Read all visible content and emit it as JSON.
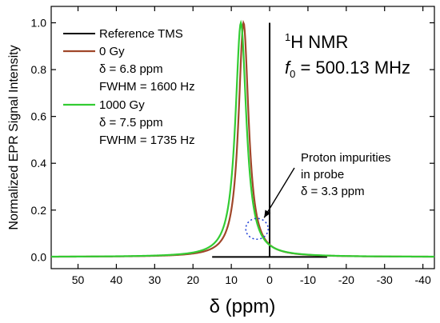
{
  "chart_data": {
    "type": "line",
    "xlabel": "δ (ppm)",
    "ylabel": "Normalized EPR Signal Intensity",
    "xlim": [
      57,
      -43
    ],
    "ylim": [
      -0.05,
      1.07
    ],
    "x_reversed": true,
    "x_ticks": [
      50,
      40,
      30,
      20,
      10,
      0,
      -10,
      -20,
      -30,
      -40
    ],
    "x_tick_labels": [
      "50",
      "40",
      "30",
      "20",
      "10",
      "0",
      "-10",
      "-20",
      "-30",
      "-40"
    ],
    "y_ticks": [
      0.0,
      0.2,
      0.4,
      0.6,
      0.8,
      1.0
    ],
    "y_tick_labels": [
      "0.0",
      "0.2",
      "0.4",
      "0.6",
      "0.8",
      "1.0"
    ],
    "legend_placement": "top-left",
    "series": [
      {
        "name": "0 Gy",
        "details": [
          "δ = 6.8 ppm",
          "FWHM = 1600 Hz"
        ],
        "color": "#a0472a",
        "shape": "lorentzian",
        "center": 6.8,
        "fwhm_ppm": 3.2,
        "peak": 1.0
      },
      {
        "name": "1000 Gy",
        "details": [
          "δ = 7.5 ppm",
          "FWHM = 1735 Hz"
        ],
        "color": "#33cc33",
        "shape": "lorentzian",
        "center": 7.5,
        "fwhm_ppm": 3.47,
        "peak": 1.0
      }
    ],
    "reference_line": {
      "name": "Reference TMS",
      "color": "#000000",
      "x": 0,
      "y_top": 1.0,
      "baseline_from": 15,
      "baseline_to": -15
    },
    "annotations": {
      "nucleus_sup": "1",
      "nucleus": "H NMR",
      "frequency_var": "f",
      "frequency_sub": "0",
      "frequency_value": " = 500.13 MHz",
      "impurity_lines": [
        "Proton impurities",
        "in probe",
        "δ = 3.3 ppm"
      ],
      "impurity_center": 3.3,
      "impurity_level": 0.12
    }
  }
}
